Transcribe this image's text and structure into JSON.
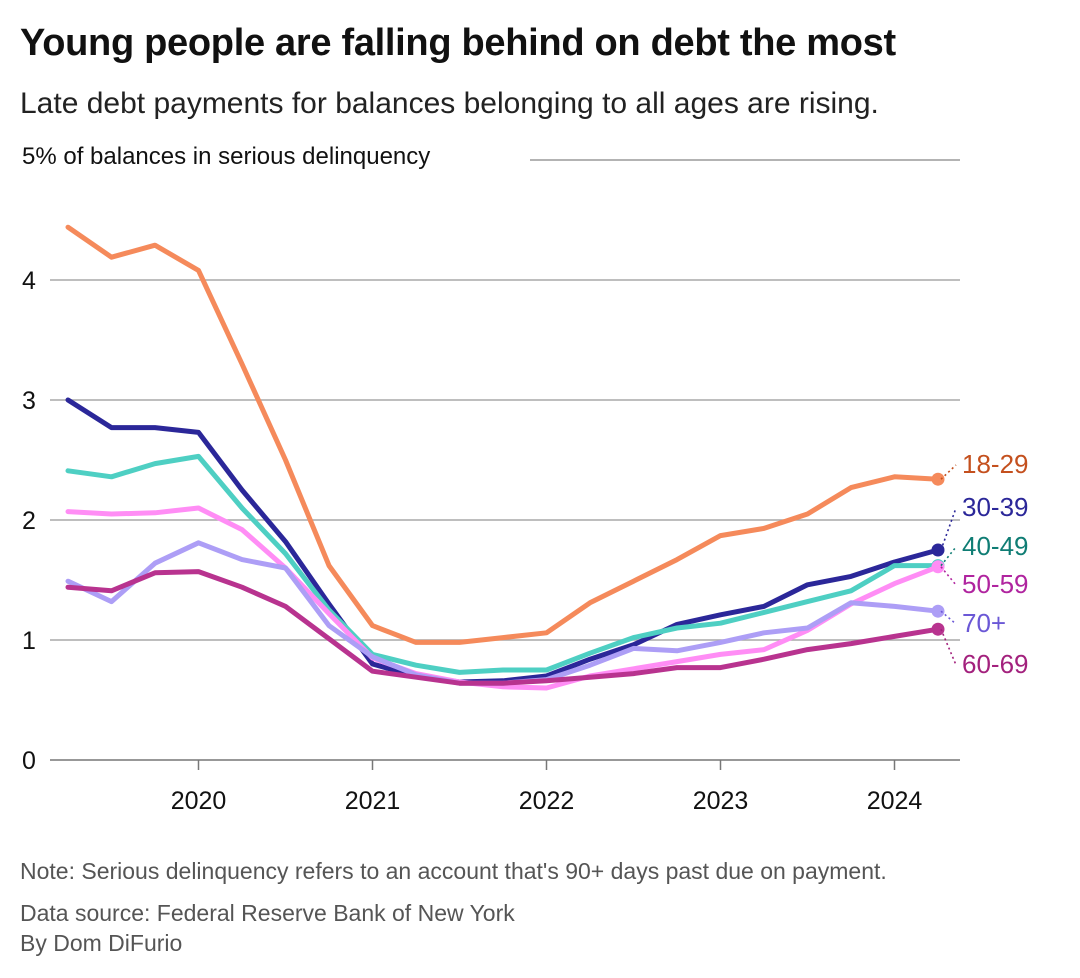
{
  "header": {
    "title": "Young people are falling behind on debt the most",
    "subtitle": "Late debt payments for balances belonging to all ages are rising."
  },
  "footer": {
    "note": "Note: Serious delinquency refers to an account that's 90+ days past due on payment.",
    "source": "Data source: Federal Reserve Bank of New York",
    "byline": "By Dom DiFurio"
  },
  "chart_data": {
    "type": "line",
    "title": "Young people are falling behind on debt the most",
    "subtitle": "Late debt payments for balances belonging to all ages are rising.",
    "ylabel": "5% of balances in serious delinquency",
    "xlabel": "",
    "ylim": [
      0,
      5
    ],
    "y_ticks": [
      0,
      1,
      2,
      3,
      4
    ],
    "x_ticks": [
      "2020",
      "2021",
      "2022",
      "2023",
      "2024"
    ],
    "grid": true,
    "legend": "direct labels at line ends (right)",
    "x": [
      "2019 Q2",
      "2019 Q3",
      "2019 Q4",
      "2020 Q1",
      "2020 Q2",
      "2020 Q3",
      "2020 Q4",
      "2021 Q1",
      "2021 Q2",
      "2021 Q3",
      "2021 Q4",
      "2022 Q1",
      "2022 Q2",
      "2022 Q3",
      "2022 Q4",
      "2023 Q1",
      "2023 Q2",
      "2023 Q3",
      "2023 Q4",
      "2024 Q1",
      "2024 Q2"
    ],
    "series": [
      {
        "name": "18-29",
        "color": "#f58a5b",
        "label_color": "#c4501e",
        "values": [
          4.44,
          4.19,
          4.29,
          4.08,
          3.3,
          2.5,
          1.62,
          1.12,
          0.98,
          0.98,
          1.02,
          1.06,
          1.31,
          1.49,
          1.67,
          1.87,
          1.93,
          2.05,
          2.27,
          2.36,
          2.34
        ]
      },
      {
        "name": "30-39",
        "color": "#2b2799",
        "label_color": "#2b2799",
        "values": [
          3.0,
          2.77,
          2.77,
          2.73,
          2.25,
          1.82,
          1.3,
          0.8,
          0.7,
          0.65,
          0.66,
          0.7,
          0.84,
          0.96,
          1.13,
          1.21,
          1.28,
          1.46,
          1.53,
          1.65,
          1.75
        ]
      },
      {
        "name": "40-49",
        "color": "#4ecfc3",
        "label_color": "#0f7d74",
        "values": [
          2.41,
          2.36,
          2.47,
          2.53,
          2.1,
          1.72,
          1.25,
          0.88,
          0.79,
          0.73,
          0.75,
          0.75,
          0.89,
          1.02,
          1.1,
          1.14,
          1.23,
          1.32,
          1.41,
          1.62,
          1.62
        ]
      },
      {
        "name": "50-59",
        "color": "#ff8df5",
        "label_color": "#b0249f",
        "values": [
          2.07,
          2.05,
          2.06,
          2.1,
          1.92,
          1.6,
          1.22,
          0.85,
          0.72,
          0.65,
          0.61,
          0.6,
          0.7,
          0.76,
          0.82,
          0.88,
          0.92,
          1.08,
          1.3,
          1.47,
          1.61
        ]
      },
      {
        "name": "70+",
        "color": "#ad9ef6",
        "label_color": "#6b58d6",
        "values": [
          1.49,
          1.32,
          1.64,
          1.81,
          1.67,
          1.6,
          1.12,
          0.86,
          0.71,
          0.64,
          0.64,
          0.67,
          0.79,
          0.93,
          0.91,
          0.98,
          1.06,
          1.1,
          1.31,
          1.28,
          1.24
        ]
      },
      {
        "name": "60-69",
        "color": "#b8338f",
        "label_color": "#a3217d",
        "values": [
          1.44,
          1.41,
          1.56,
          1.57,
          1.44,
          1.28,
          1.01,
          0.74,
          0.69,
          0.64,
          0.64,
          0.66,
          0.69,
          0.72,
          0.77,
          0.77,
          0.84,
          0.92,
          0.97,
          1.03,
          1.09
        ]
      }
    ]
  }
}
